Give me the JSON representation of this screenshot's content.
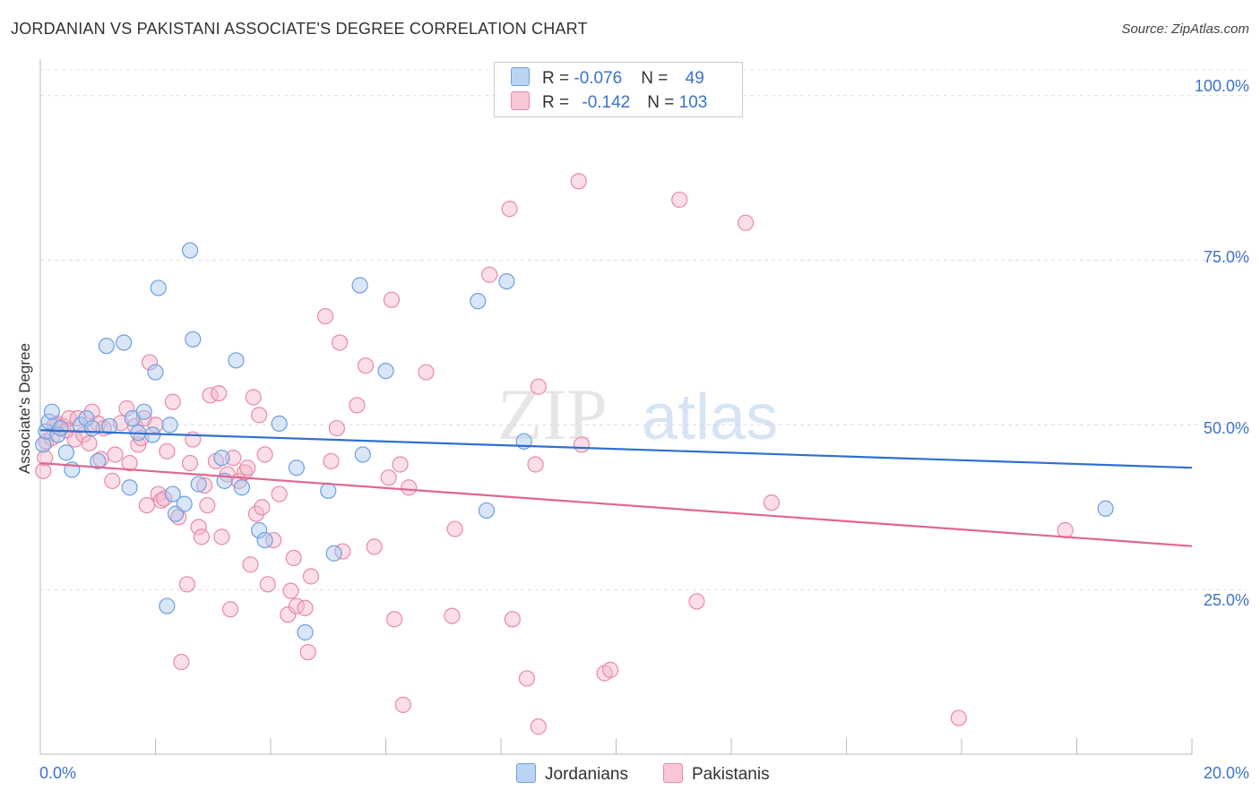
{
  "title": "JORDANIAN VS PAKISTANI ASSOCIATE'S DEGREE CORRELATION CHART",
  "source": "Source: ZipAtlas.com",
  "watermark_zip": "ZIP",
  "watermark_atlas": "atlas",
  "legend": {
    "rows": [
      {
        "r_label": "R = ",
        "r_value": "-0.076",
        "n_label": "N = ",
        "n_value": "49"
      },
      {
        "r_label": "R = ",
        "r_value": "-0.142",
        "n_label": "N = ",
        "n_value": "103"
      }
    ]
  },
  "bottom_legend": [
    "Jordanians",
    "Pakistanis"
  ],
  "colors": {
    "jordanians_fill": "#a8c8f0",
    "jordanians_stroke": "#6f9fdc",
    "jordanians_line": "#2f6fd0",
    "pakistanis_fill": "#f6b6cb",
    "pakistanis_stroke": "#e889aa",
    "pakistanis_line": "#e0678f",
    "axis_text": "#3d72c9"
  },
  "chart_data": {
    "type": "scatter",
    "title": "JORDANIAN VS PAKISTANI ASSOCIATE'S DEGREE CORRELATION CHART",
    "xlabel": "",
    "ylabel": "Associate's Degree",
    "xlim": [
      0,
      20
    ],
    "ylim": [
      0,
      105
    ],
    "x_tick_labels": [
      "0.0%",
      "20.0%"
    ],
    "y_ticks": [
      25,
      50,
      75,
      100
    ],
    "y_tick_labels": [
      "25.0%",
      "50.0%",
      "75.0%",
      "100.0%"
    ],
    "grid": true,
    "legend_position": "top-center",
    "series": [
      {
        "name": "Jordanians",
        "R": -0.076,
        "N": 49,
        "trend": {
          "x": [
            0,
            20
          ],
          "y": [
            49.2,
            43.5
          ]
        },
        "points": [
          [
            0.05,
            47.0
          ],
          [
            0.1,
            49.0
          ],
          [
            0.15,
            50.5
          ],
          [
            0.2,
            52.0
          ],
          [
            0.3,
            48.5
          ],
          [
            0.35,
            49.5
          ],
          [
            0.45,
            45.8
          ],
          [
            0.55,
            43.2
          ],
          [
            0.7,
            50.0
          ],
          [
            0.8,
            51.0
          ],
          [
            0.9,
            49.5
          ],
          [
            1.0,
            44.5
          ],
          [
            1.2,
            49.8
          ],
          [
            1.15,
            62.0
          ],
          [
            1.45,
            62.5
          ],
          [
            1.55,
            40.5
          ],
          [
            1.6,
            51.0
          ],
          [
            1.7,
            48.8
          ],
          [
            1.8,
            52.0
          ],
          [
            1.95,
            48.5
          ],
          [
            2.0,
            58.0
          ],
          [
            2.05,
            70.8
          ],
          [
            2.2,
            22.5
          ],
          [
            2.3,
            39.5
          ],
          [
            2.35,
            36.5
          ],
          [
            2.5,
            38.0
          ],
          [
            2.6,
            76.5
          ],
          [
            2.65,
            63.0
          ],
          [
            2.75,
            41.0
          ],
          [
            3.15,
            45.0
          ],
          [
            3.2,
            41.5
          ],
          [
            3.4,
            59.8
          ],
          [
            3.5,
            40.5
          ],
          [
            3.8,
            34.0
          ],
          [
            3.9,
            32.5
          ],
          [
            4.15,
            50.2
          ],
          [
            4.45,
            43.5
          ],
          [
            4.6,
            18.5
          ],
          [
            5.0,
            40.0
          ],
          [
            5.1,
            30.5
          ],
          [
            5.55,
            71.2
          ],
          [
            5.6,
            45.5
          ],
          [
            6.0,
            58.2
          ],
          [
            7.6,
            68.8
          ],
          [
            7.75,
            37.0
          ],
          [
            8.1,
            71.8
          ],
          [
            8.4,
            47.5
          ],
          [
            18.5,
            37.3
          ],
          [
            2.25,
            50.0
          ]
        ]
      },
      {
        "name": "Pakistanis",
        "R": -0.142,
        "N": 103,
        "trend": {
          "x": [
            0,
            20
          ],
          "y": [
            44.2,
            31.6
          ]
        },
        "points": [
          [
            0.05,
            43.0
          ],
          [
            0.08,
            45.0
          ],
          [
            0.1,
            47.5
          ],
          [
            0.2,
            48.0
          ],
          [
            0.3,
            50.2
          ],
          [
            0.4,
            49.8
          ],
          [
            0.5,
            51.0
          ],
          [
            0.6,
            47.8
          ],
          [
            0.65,
            51.0
          ],
          [
            0.75,
            48.5
          ],
          [
            0.85,
            47.2
          ],
          [
            0.9,
            52.0
          ],
          [
            1.0,
            50.2
          ],
          [
            1.05,
            44.8
          ],
          [
            1.1,
            49.5
          ],
          [
            1.25,
            41.5
          ],
          [
            1.3,
            45.5
          ],
          [
            1.4,
            50.3
          ],
          [
            1.5,
            52.5
          ],
          [
            1.55,
            44.2
          ],
          [
            1.65,
            49.8
          ],
          [
            1.7,
            47.0
          ],
          [
            1.8,
            51.0
          ],
          [
            1.85,
            37.8
          ],
          [
            1.9,
            59.5
          ],
          [
            2.0,
            50.0
          ],
          [
            2.05,
            39.5
          ],
          [
            2.1,
            38.5
          ],
          [
            2.15,
            38.8
          ],
          [
            2.2,
            46.0
          ],
          [
            2.3,
            53.5
          ],
          [
            2.4,
            36.0
          ],
          [
            2.45,
            14.0
          ],
          [
            2.55,
            25.8
          ],
          [
            2.6,
            44.2
          ],
          [
            2.65,
            47.8
          ],
          [
            2.75,
            34.5
          ],
          [
            2.8,
            33.0
          ],
          [
            2.85,
            40.8
          ],
          [
            2.9,
            37.8
          ],
          [
            2.95,
            54.5
          ],
          [
            3.05,
            44.5
          ],
          [
            3.1,
            54.8
          ],
          [
            3.15,
            33.0
          ],
          [
            3.25,
            42.5
          ],
          [
            3.3,
            22.0
          ],
          [
            3.45,
            41.5
          ],
          [
            3.55,
            42.8
          ],
          [
            3.6,
            43.5
          ],
          [
            3.65,
            28.8
          ],
          [
            3.7,
            54.2
          ],
          [
            3.75,
            36.5
          ],
          [
            3.8,
            51.5
          ],
          [
            3.85,
            37.5
          ],
          [
            3.9,
            45.5
          ],
          [
            3.95,
            25.8
          ],
          [
            4.05,
            32.5
          ],
          [
            4.15,
            39.5
          ],
          [
            4.3,
            21.2
          ],
          [
            4.35,
            24.8
          ],
          [
            4.4,
            29.8
          ],
          [
            4.45,
            22.5
          ],
          [
            4.6,
            22.2
          ],
          [
            4.65,
            15.5
          ],
          [
            4.7,
            27.0
          ],
          [
            4.95,
            66.5
          ],
          [
            5.15,
            49.5
          ],
          [
            5.2,
            62.5
          ],
          [
            5.25,
            30.8
          ],
          [
            5.5,
            53.0
          ],
          [
            5.65,
            59.0
          ],
          [
            5.8,
            31.5
          ],
          [
            6.05,
            42.0
          ],
          [
            6.1,
            69.0
          ],
          [
            6.15,
            20.5
          ],
          [
            6.25,
            44.0
          ],
          [
            6.3,
            7.5
          ],
          [
            6.4,
            40.5
          ],
          [
            6.7,
            58.0
          ],
          [
            7.15,
            21.0
          ],
          [
            7.2,
            34.2
          ],
          [
            7.8,
            72.8
          ],
          [
            8.15,
            82.8
          ],
          [
            8.2,
            20.5
          ],
          [
            8.45,
            11.5
          ],
          [
            8.6,
            44.0
          ],
          [
            8.65,
            55.8
          ],
          [
            8.65,
            4.2
          ],
          [
            9.35,
            87.0
          ],
          [
            9.4,
            47.0
          ],
          [
            9.8,
            12.3
          ],
          [
            9.9,
            12.8
          ],
          [
            11.1,
            84.2
          ],
          [
            11.4,
            23.2
          ],
          [
            12.25,
            80.7
          ],
          [
            12.7,
            38.2
          ],
          [
            15.95,
            5.5
          ],
          [
            17.8,
            34.0
          ],
          [
            0.25,
            50.0
          ],
          [
            0.45,
            49.2
          ],
          [
            1.75,
            48.0
          ],
          [
            3.35,
            45.0
          ],
          [
            5.05,
            44.5
          ]
        ]
      }
    ]
  }
}
